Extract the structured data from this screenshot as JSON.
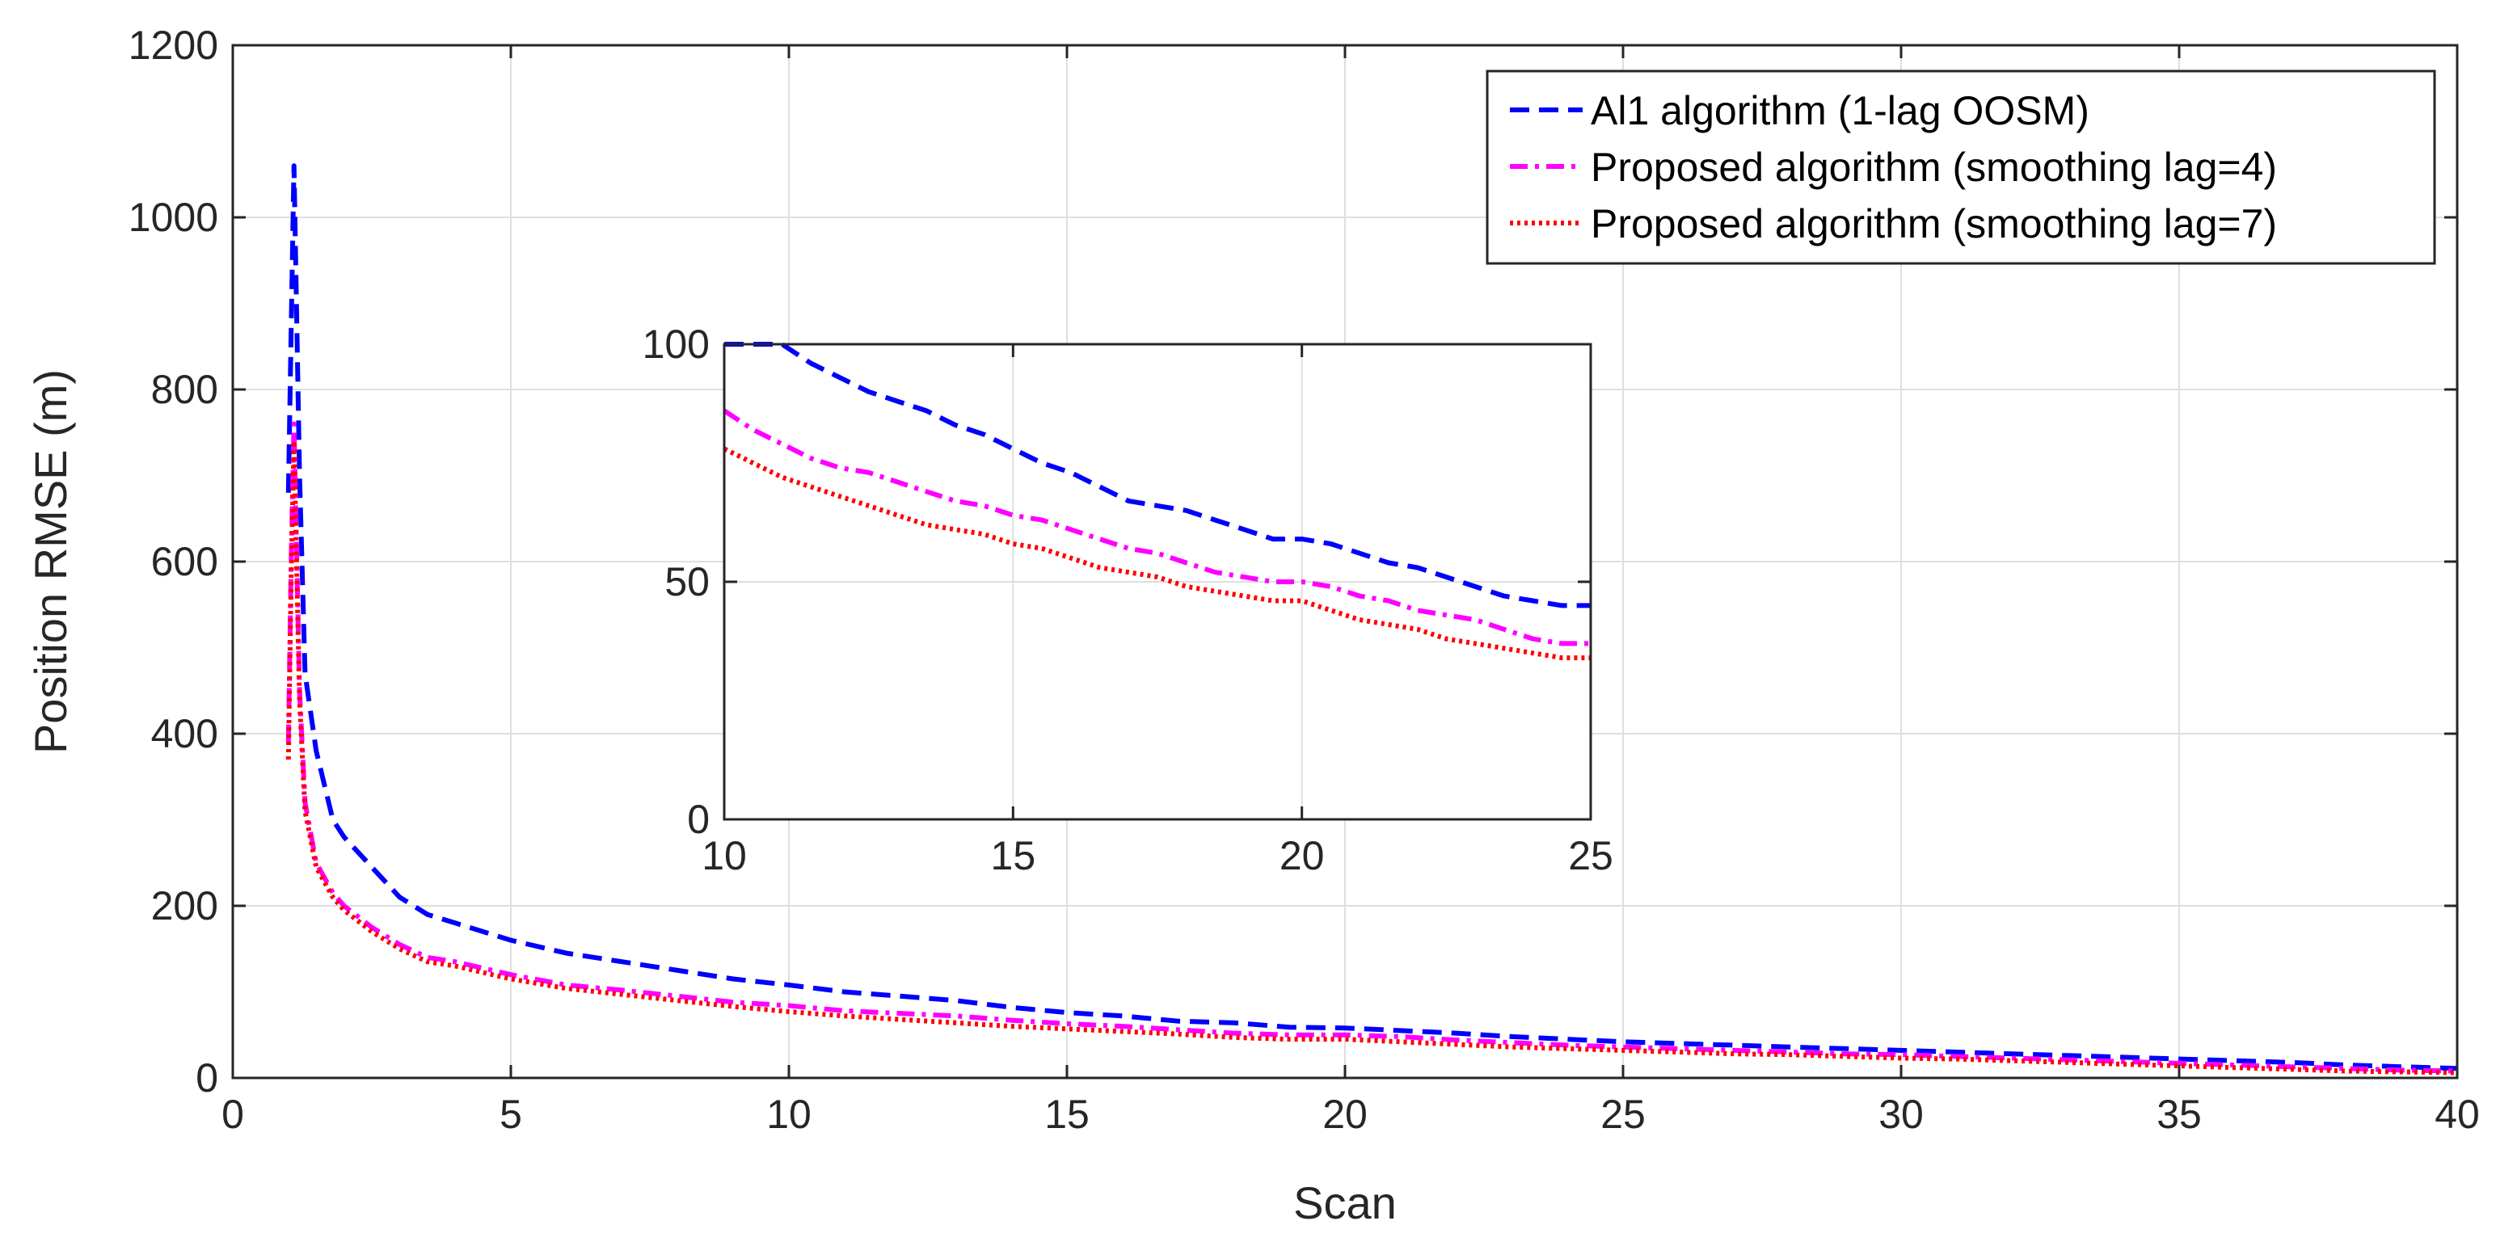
{
  "colors": {
    "s1": "#0000ff",
    "s2": "#ff00ff",
    "s3": "#ff0000",
    "grid": "#dedede",
    "axis": "#262626"
  },
  "chart_data": [
    {
      "type": "line",
      "role": "main",
      "xlabel": "Scan",
      "ylabel": "Position RMSE (m)",
      "xlim": [
        0,
        40
      ],
      "ylim": [
        0,
        1200
      ],
      "xticks": [
        0,
        5,
        10,
        15,
        20,
        25,
        30,
        35,
        40
      ],
      "yticks": [
        0,
        200,
        400,
        600,
        800,
        1000,
        1200
      ],
      "grid": true,
      "legend_position": "top-right",
      "series": [
        {
          "name": "Al1 algorithm (1-lag OOSM)",
          "style": "dashed",
          "x": [
            1.0,
            1.1,
            1.2,
            1.3,
            1.5,
            1.8,
            2.0,
            2.5,
            3.0,
            3.5,
            4.0,
            5.0,
            6.0,
            7.0,
            8.0,
            9.0,
            10.0,
            11.0,
            12.0,
            13.0,
            14.0,
            15.0,
            16.0,
            17.0,
            18.0,
            19.0,
            20.0,
            21.0,
            22.0,
            23.0,
            24.0,
            25.0,
            26.0,
            27.0,
            28.0,
            29.0,
            30.0,
            31.0,
            32.0,
            33.0,
            34.0,
            35.0,
            36.0,
            37.0,
            38.0,
            39.0,
            40.0
          ],
          "values": [
            680,
            1060,
            700,
            470,
            380,
            300,
            280,
            245,
            210,
            190,
            180,
            160,
            145,
            135,
            125,
            115,
            108,
            100,
            95,
            90,
            82,
            76,
            72,
            66,
            64,
            59,
            58,
            55,
            52,
            48,
            45,
            42,
            40,
            38,
            36,
            34,
            32,
            30,
            28,
            26,
            24,
            22,
            20,
            18,
            15,
            13,
            11
          ]
        },
        {
          "name": "Proposed algorithm (smoothing lag=4)",
          "style": "dashdot",
          "x": [
            1.0,
            1.05,
            1.1,
            1.2,
            1.3,
            1.5,
            1.8,
            2.0,
            2.5,
            3.0,
            3.5,
            4.0,
            5.0,
            6.0,
            7.0,
            8.0,
            9.0,
            10.0,
            11.0,
            12.0,
            13.0,
            14.0,
            15.0,
            16.0,
            17.0,
            18.0,
            19.0,
            20.0,
            21.0,
            22.0,
            23.0,
            24.0,
            25.0,
            26.0,
            27.0,
            28.0,
            29.0,
            30.0,
            31.0,
            32.0,
            33.0,
            34.0,
            35.0,
            36.0,
            37.0,
            38.0,
            39.0,
            40.0
          ],
          "values": [
            390,
            600,
            760,
            450,
            320,
            250,
            215,
            200,
            175,
            155,
            140,
            135,
            120,
            108,
            102,
            95,
            88,
            84,
            78,
            75,
            72,
            67,
            63,
            60,
            56,
            52,
            50,
            50,
            48,
            44,
            41,
            38,
            36,
            34,
            32,
            30,
            28,
            27,
            25,
            23,
            21,
            19,
            17,
            15,
            13,
            11,
            9,
            8
          ]
        },
        {
          "name": "Proposed algorithm (smoothing lag=7)",
          "style": "dotted",
          "x": [
            1.0,
            1.05,
            1.1,
            1.2,
            1.3,
            1.5,
            1.8,
            2.0,
            2.5,
            3.0,
            3.5,
            4.0,
            5.0,
            6.0,
            7.0,
            8.0,
            9.0,
            10.0,
            11.0,
            12.0,
            13.0,
            14.0,
            15.0,
            16.0,
            17.0,
            18.0,
            19.0,
            20.0,
            21.0,
            22.0,
            23.0,
            24.0,
            25.0,
            26.0,
            27.0,
            28.0,
            29.0,
            30.0,
            31.0,
            32.0,
            33.0,
            34.0,
            35.0,
            36.0,
            37.0,
            38.0,
            39.0,
            40.0
          ],
          "values": [
            370,
            580,
            740,
            440,
            310,
            245,
            210,
            195,
            170,
            150,
            135,
            130,
            115,
            104,
            97,
            90,
            83,
            77,
            72,
            68,
            64,
            60,
            57,
            54,
            51,
            47,
            45,
            45,
            42,
            39,
            36,
            34,
            32,
            30,
            28,
            27,
            25,
            23,
            22,
            20,
            18,
            16,
            14,
            12,
            10,
            8,
            7,
            6
          ]
        }
      ]
    },
    {
      "type": "line",
      "role": "inset",
      "xlim": [
        10,
        25
      ],
      "ylim": [
        0,
        100
      ],
      "xticks": [
        10,
        15,
        20,
        25
      ],
      "yticks": [
        0,
        50,
        100
      ],
      "grid": true,
      "series": [
        {
          "name": "Al1 algorithm (1-lag OOSM)",
          "style": "dashed",
          "x": [
            10.0,
            10.5,
            11.0,
            11.5,
            12.0,
            12.5,
            13.0,
            13.5,
            14.0,
            14.5,
            15.0,
            15.5,
            16.0,
            16.5,
            17.0,
            17.5,
            18.0,
            18.5,
            19.0,
            19.5,
            20.0,
            20.5,
            21.0,
            21.5,
            22.0,
            22.5,
            23.0,
            23.5,
            24.0,
            24.5,
            25.0
          ],
          "values": [
            103,
            101,
            100,
            96,
            93,
            90,
            88,
            86,
            83,
            81,
            78,
            75,
            73,
            70,
            67,
            66,
            65,
            63,
            61,
            59,
            59,
            58,
            56,
            54,
            53,
            51,
            49,
            47,
            46,
            45,
            45
          ]
        },
        {
          "name": "Proposed algorithm (smoothing lag=4)",
          "style": "dashdot",
          "x": [
            10.0,
            10.5,
            11.0,
            11.5,
            12.0,
            12.5,
            13.0,
            13.5,
            14.0,
            14.5,
            15.0,
            15.5,
            16.0,
            16.5,
            17.0,
            17.5,
            18.0,
            18.5,
            19.0,
            19.5,
            20.0,
            20.5,
            21.0,
            21.5,
            22.0,
            22.5,
            23.0,
            23.5,
            24.0,
            24.5,
            25.0
          ],
          "values": [
            86,
            82,
            79,
            76,
            74,
            73,
            71,
            69,
            67,
            66,
            64,
            63,
            61,
            59,
            57,
            56,
            54,
            52,
            51,
            50,
            50,
            49,
            47,
            46,
            44,
            43,
            42,
            40,
            38,
            37,
            37
          ]
        },
        {
          "name": "Proposed algorithm (smoothing lag=7)",
          "style": "dotted",
          "x": [
            10.0,
            10.5,
            11.0,
            11.5,
            12.0,
            12.5,
            13.0,
            13.5,
            14.0,
            14.5,
            15.0,
            15.5,
            16.0,
            16.5,
            17.0,
            17.5,
            18.0,
            18.5,
            19.0,
            19.5,
            20.0,
            20.5,
            21.0,
            21.5,
            22.0,
            22.5,
            23.0,
            23.5,
            24.0,
            24.5,
            25.0
          ],
          "values": [
            78,
            75,
            72,
            70,
            68,
            66,
            64,
            62,
            61,
            60,
            58,
            57,
            55,
            53,
            52,
            51,
            49,
            48,
            47,
            46,
            46,
            44,
            42,
            41,
            40,
            38,
            37,
            36,
            35,
            34,
            34
          ]
        }
      ]
    }
  ]
}
